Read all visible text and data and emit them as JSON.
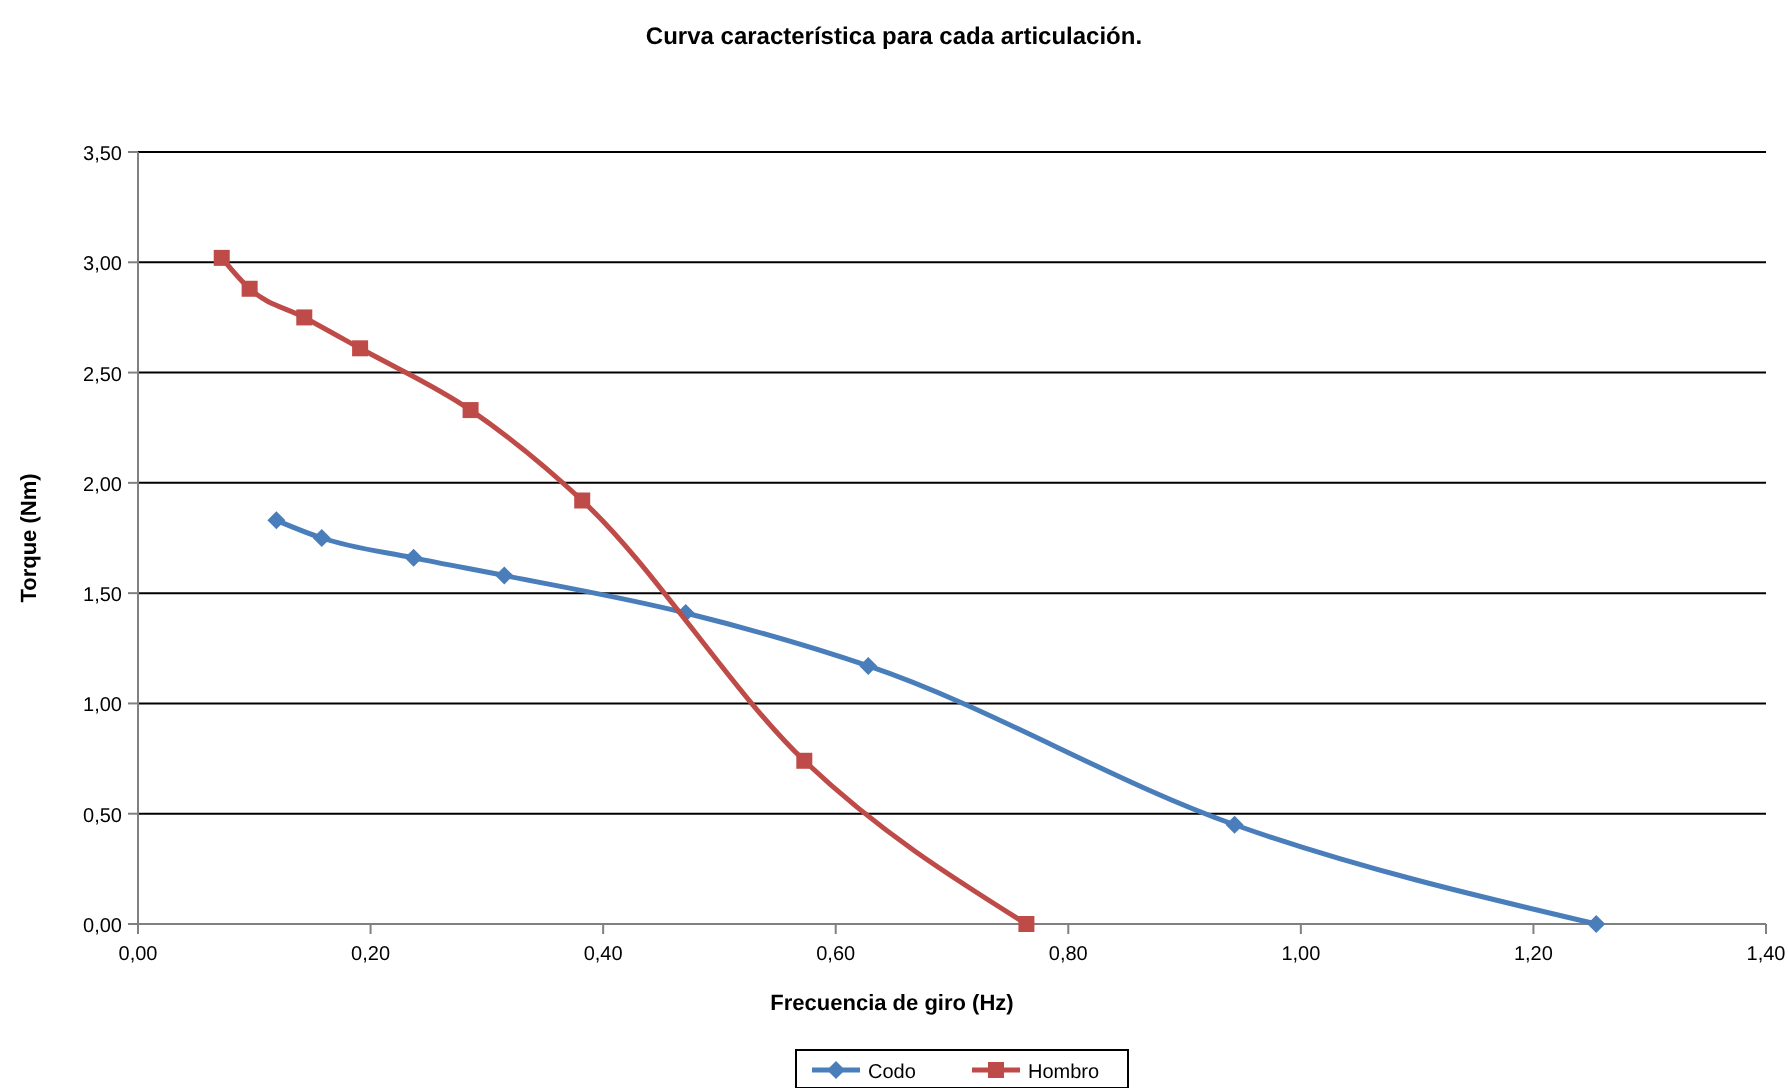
{
  "chart_data": {
    "type": "line",
    "title": "Curva característica para cada articulación.",
    "xlabel": "Frecuencia de giro (Hz)",
    "ylabel": "Torque (Nm)",
    "xlim": [
      0,
      1.4
    ],
    "xticks": [
      {
        "value": 0,
        "label": "0,00"
      },
      {
        "value": 0.2,
        "label": "0,20"
      },
      {
        "value": 0.4,
        "label": "0,40"
      },
      {
        "value": 0.6,
        "label": "0,60"
      },
      {
        "value": 0.8,
        "label": "0,80"
      },
      {
        "value": 1,
        "label": "1,00"
      },
      {
        "value": 1.2,
        "label": "1,20"
      },
      {
        "value": 1.4,
        "label": "1,40"
      }
    ],
    "ylim": [
      0,
      3.5
    ],
    "yticks": [
      {
        "value": 0,
        "label": "0,00"
      },
      {
        "value": 0.5,
        "label": "0,50"
      },
      {
        "value": 1,
        "label": "1,00"
      },
      {
        "value": 1.5,
        "label": "1,50"
      },
      {
        "value": 2,
        "label": "2,00"
      },
      {
        "value": 2.5,
        "label": "2,50"
      },
      {
        "value": 3,
        "label": "3,00"
      },
      {
        "value": 3.5,
        "label": "3,50"
      }
    ],
    "grid": "y",
    "legend": "bottom",
    "line_style": "solid",
    "series": [
      {
        "name": "Codo",
        "color": "#4a7ebb",
        "marker": "diamond",
        "x": [
          0.119,
          0.158,
          0.237,
          0.315,
          0.471,
          0.628,
          0.943,
          1.254
        ],
        "values": [
          1.83,
          1.75,
          1.66,
          1.58,
          1.41,
          1.17,
          0.45,
          0
        ]
      },
      {
        "name": "Hombro",
        "color": "#be4b48",
        "marker": "square",
        "x": [
          0.072,
          0.096,
          0.143,
          0.191,
          0.286,
          0.382,
          0.573,
          0.764
        ],
        "values": [
          3.02,
          2.88,
          2.75,
          2.61,
          2.33,
          1.92,
          0.74,
          0
        ]
      }
    ]
  }
}
